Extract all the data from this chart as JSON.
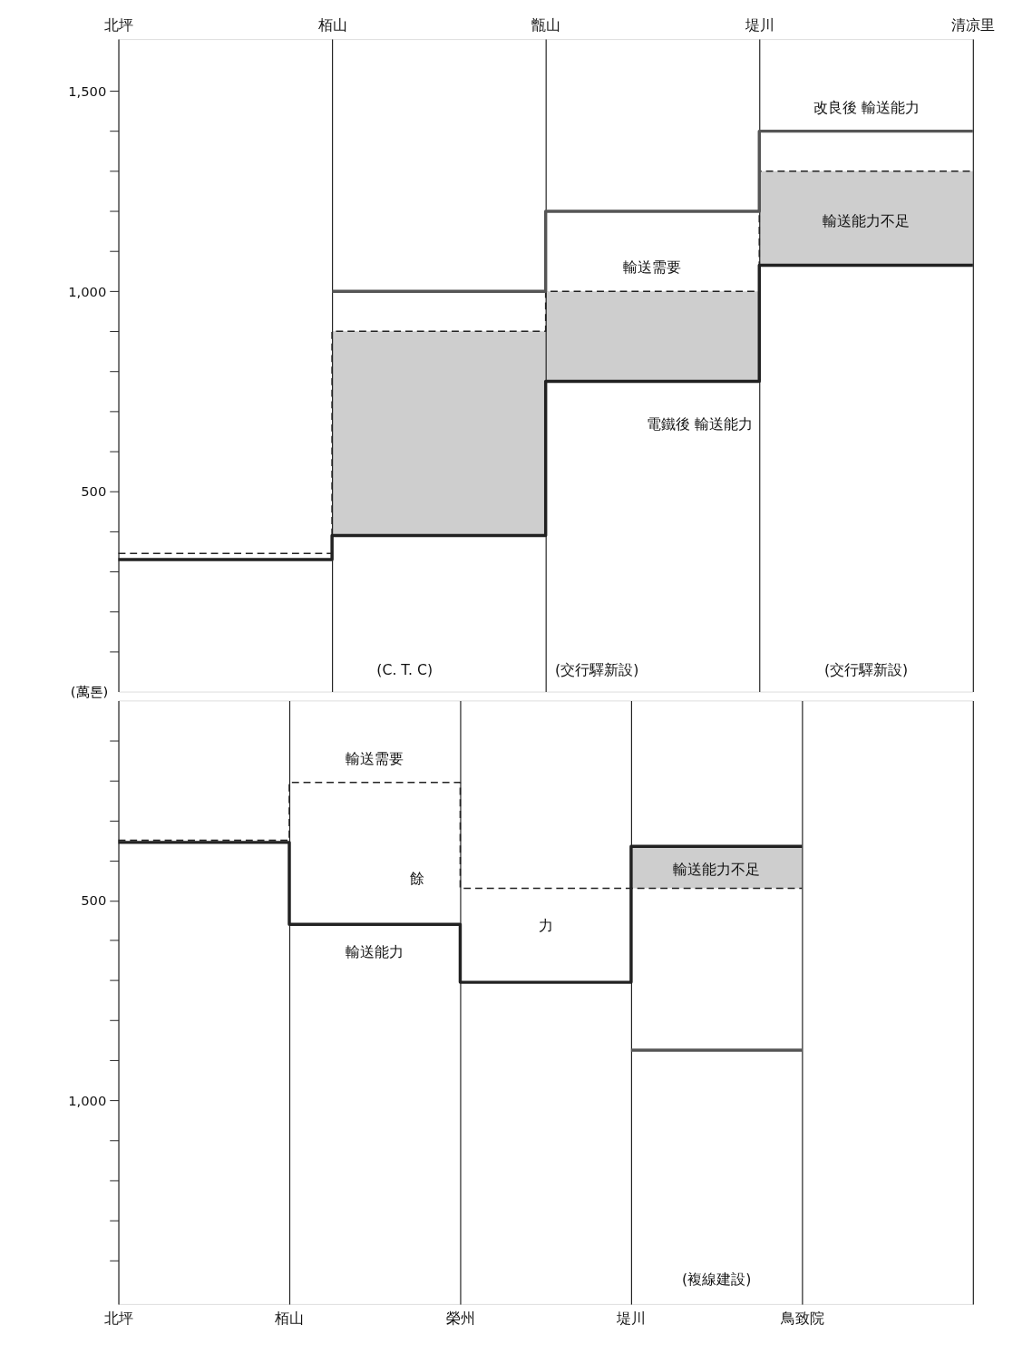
{
  "chart_data": [
    {
      "type": "step",
      "ylabel": "(萬톤)",
      "categories": [
        "北坪",
        "栢山",
        "甑山",
        "堤川",
        "清凉里"
      ],
      "ylim": [
        0,
        1630
      ],
      "yticks": [
        {
          "value": 100,
          "label": null
        },
        {
          "value": 200,
          "label": null
        },
        {
          "value": 300,
          "label": null
        },
        {
          "value": 400,
          "label": null
        },
        500,
        {
          "value": 600,
          "label": null
        },
        {
          "value": 700,
          "label": null
        },
        {
          "value": 800,
          "label": null
        },
        {
          "value": 900,
          "label": null
        },
        {
          "value": 1000,
          "label": "1,000"
        },
        {
          "value": 1100,
          "label": null
        },
        {
          "value": 1200,
          "label": null
        },
        {
          "value": 1300,
          "label": null
        },
        {
          "value": 1400,
          "label": null
        },
        {
          "value": 1500,
          "label": "1,500"
        }
      ],
      "grid": "x",
      "series": [
        {
          "color": "#222222",
          "line_style": "solid",
          "values": [
            330,
            390,
            775,
            1065,
            1065
          ]
        },
        {
          "color": "#222222",
          "line_style": "dashed",
          "values": [
            345,
            900,
            1000,
            1300,
            1300
          ],
          "lower": [
            null,
            390,
            775,
            1065,
            1065
          ],
          "upper": [
            null,
            900,
            1000,
            1300,
            1300
          ]
        },
        {
          "color": "#555555",
          "line_style": "solid",
          "values": [
            null,
            1000,
            1200,
            1400,
            1400
          ]
        }
      ],
      "annotations": [
        "改良後 輸送能力",
        "輸送能力不足",
        "輸送需要",
        "電鐵後 輸送能力",
        "(C. T. C)",
        "(交行驛新設)",
        "(交行驛新設)"
      ]
    },
    {
      "type": "step",
      "categories": [
        "北坪",
        "栢山",
        "榮州",
        "堤川",
        "鳥致院",
        null
      ],
      "ylim": [
        1510,
        0
      ],
      "yticks": [
        {
          "value": 100,
          "label": null
        },
        {
          "value": 200,
          "label": null
        },
        {
          "value": 300,
          "label": null
        },
        {
          "value": 400,
          "label": null
        },
        500,
        {
          "value": 600,
          "label": null
        },
        {
          "value": 700,
          "label": null
        },
        {
          "value": 800,
          "label": null
        },
        {
          "value": 900,
          "label": null
        },
        {
          "value": 1000,
          "label": "1,000"
        },
        {
          "value": 1100,
          "label": null
        },
        {
          "value": 1200,
          "label": null
        },
        {
          "value": 1300,
          "label": null
        },
        {
          "value": 1400,
          "label": null
        }
      ],
      "grid": "x",
      "series": [
        {
          "color": "#222222",
          "line_style": "solid",
          "values": [
            355,
            560,
            705,
            365,
            365,
            null
          ]
        },
        {
          "color": "#222222",
          "line_style": "dashed",
          "values": [
            350,
            205,
            470,
            470,
            470,
            null
          ],
          "lower": [
            null,
            null,
            null,
            365,
            365,
            null
          ],
          "upper": [
            null,
            null,
            null,
            470,
            470,
            null
          ]
        },
        {
          "color": "#555555",
          "line_style": "solid",
          "values": [
            null,
            null,
            null,
            875,
            875,
            null
          ]
        }
      ],
      "annotations": [
        "輸送需要",
        "餘",
        "力",
        "輸送能力",
        "輸送能力不足",
        "(複線建設)"
      ]
    }
  ]
}
